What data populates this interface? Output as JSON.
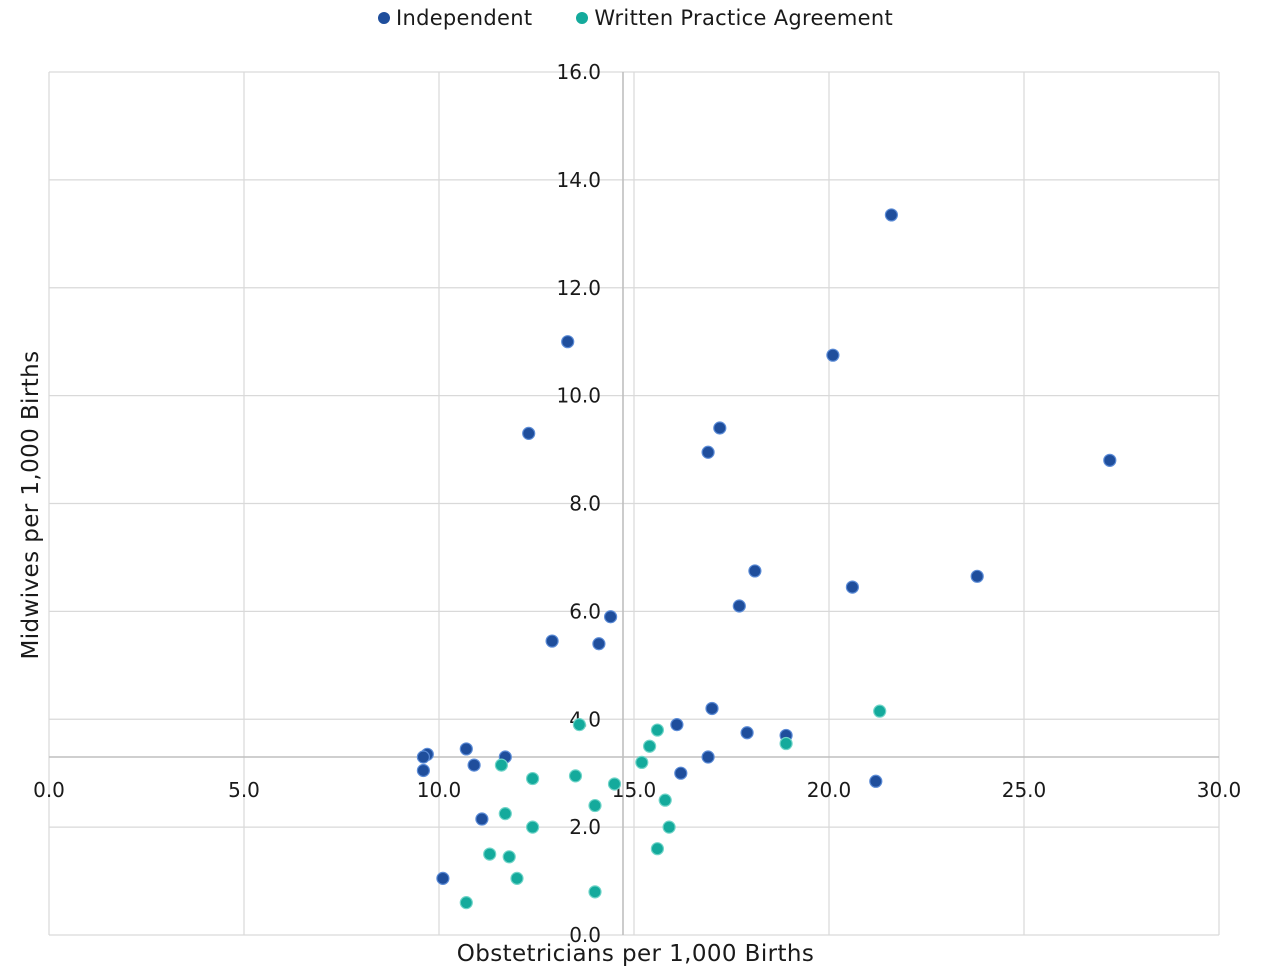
{
  "chart_data": {
    "type": "scatter",
    "xlabel": "Obstetricians per 1,000 Births",
    "ylabel": "Midwives per 1,000 Births",
    "xlim": [
      0,
      30
    ],
    "ylim": [
      0,
      16
    ],
    "x_ticks": [
      "0.0",
      "5.0",
      "10.0",
      "15.0",
      "20.0",
      "25.0",
      "30.0"
    ],
    "y_ticks": [
      "0.0",
      "2.0",
      "4.0",
      "6.0",
      "8.0",
      "10.0",
      "12.0",
      "14.0",
      "16.0"
    ],
    "grid": true,
    "legend_position": "top",
    "series": [
      {
        "name": "Independent",
        "color": "#1f4e9c",
        "points": [
          [
            21.6,
            13.35
          ],
          [
            13.3,
            11.0
          ],
          [
            20.1,
            10.75
          ],
          [
            12.3,
            9.3
          ],
          [
            17.2,
            9.4
          ],
          [
            16.9,
            8.95
          ],
          [
            27.2,
            8.8
          ],
          [
            18.1,
            6.75
          ],
          [
            23.8,
            6.65
          ],
          [
            20.6,
            6.45
          ],
          [
            17.7,
            6.1
          ],
          [
            14.4,
            5.9
          ],
          [
            12.9,
            5.45
          ],
          [
            14.1,
            5.4
          ],
          [
            17.0,
            4.2
          ],
          [
            16.1,
            3.9
          ],
          [
            17.9,
            3.75
          ],
          [
            18.9,
            3.7
          ],
          [
            10.7,
            3.45
          ],
          [
            9.7,
            3.35
          ],
          [
            9.6,
            3.3
          ],
          [
            11.7,
            3.3
          ],
          [
            16.9,
            3.3
          ],
          [
            10.9,
            3.15
          ],
          [
            9.6,
            3.05
          ],
          [
            16.2,
            3.0
          ],
          [
            21.2,
            2.85
          ],
          [
            11.1,
            2.15
          ],
          [
            10.1,
            1.05
          ]
        ]
      },
      {
        "name": "Written Practice Agreement",
        "color": "#14aa9c",
        "points": [
          [
            21.3,
            4.15
          ],
          [
            13.6,
            3.9
          ],
          [
            15.6,
            3.8
          ],
          [
            18.9,
            3.55
          ],
          [
            15.4,
            3.5
          ],
          [
            15.2,
            3.2
          ],
          [
            11.6,
            3.15
          ],
          [
            13.5,
            2.95
          ],
          [
            12.4,
            2.9
          ],
          [
            14.5,
            2.8
          ],
          [
            15.8,
            2.5
          ],
          [
            14.0,
            2.4
          ],
          [
            11.7,
            2.25
          ],
          [
            12.4,
            2.0
          ],
          [
            15.9,
            2.0
          ],
          [
            15.6,
            1.6
          ],
          [
            11.3,
            1.5
          ],
          [
            11.8,
            1.45
          ],
          [
            12.0,
            1.05
          ],
          [
            14.0,
            0.8
          ],
          [
            10.7,
            0.6
          ]
        ]
      }
    ]
  }
}
